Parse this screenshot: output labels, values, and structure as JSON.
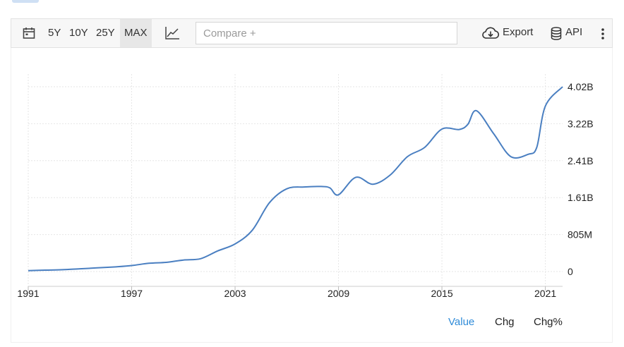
{
  "toolbar": {
    "ranges": [
      "5Y",
      "10Y",
      "25Y",
      "MAX"
    ],
    "selected_range": "MAX",
    "compare_placeholder": "Compare +",
    "export_label": "Export",
    "api_label": "API",
    "icons": [
      "calendar-icon",
      "line-chart-icon",
      "cloud-download-icon",
      "database-icon",
      "more-vertical-icon"
    ]
  },
  "colors": {
    "line": "#4a7fc1",
    "grid": "#e6e6e6",
    "active_tab": "#2f8bd8"
  },
  "chart_data": {
    "type": "line",
    "x_ticks": [
      "1991",
      "1997",
      "2003",
      "2009",
      "2015",
      "2021"
    ],
    "y_ticks": [
      "0",
      "805M",
      "1.61B",
      "2.41B",
      "3.22B",
      "4.02B"
    ],
    "xlim": [
      1991,
      2022
    ],
    "ylim": [
      0,
      4.02
    ],
    "y_unit": "B",
    "grid": true,
    "series": [
      {
        "x": [
          1991,
          1992,
          1993,
          1994,
          1995,
          1996,
          1997,
          1998,
          1999,
          2000,
          2001,
          2002,
          2003,
          2004,
          2005,
          2006,
          2007,
          2008,
          2008.5,
          2009,
          2010,
          2011,
          2012,
          2013,
          2014,
          2015,
          2016,
          2016.5,
          2017,
          2018,
          2019,
          2020,
          2020.5,
          2021,
          2022
        ],
        "y": [
          0.02,
          0.03,
          0.04,
          0.06,
          0.08,
          0.1,
          0.13,
          0.18,
          0.2,
          0.25,
          0.28,
          0.45,
          0.6,
          0.9,
          1.5,
          1.8,
          1.84,
          1.85,
          1.82,
          1.67,
          2.05,
          1.9,
          2.1,
          2.5,
          2.7,
          3.1,
          3.09,
          3.2,
          3.5,
          3.0,
          2.5,
          2.55,
          2.7,
          3.6,
          4.02
        ]
      }
    ]
  },
  "legend_tabs": [
    "Value",
    "Chg",
    "Chg%"
  ],
  "active_tab": "Value"
}
